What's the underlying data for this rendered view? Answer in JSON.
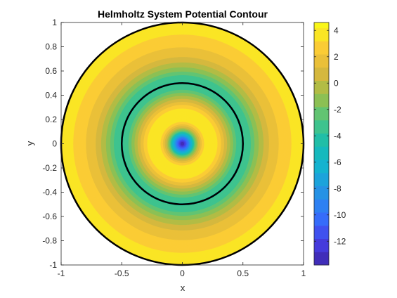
{
  "chart_data": {
    "type": "contour",
    "title": "Helmholtz System Potential Contour",
    "xlabel": "x",
    "ylabel": "y",
    "xlim": [
      -1,
      1
    ],
    "ylim": [
      -1,
      1
    ],
    "x_ticks": [
      "-1",
      "-0.5",
      "0",
      "0.5",
      "1"
    ],
    "y_ticks": [
      "-1",
      "-0.8",
      "-0.6",
      "-0.4",
      "-0.2",
      "0",
      "0.2",
      "0.4",
      "0.6",
      "0.8",
      "1"
    ],
    "domain": "unit disk",
    "colormap": "parula",
    "colorbar": {
      "range": [
        -13.8,
        4.6
      ],
      "ticks": [
        "4",
        "2",
        "0",
        "-2",
        "-4",
        "-6",
        "-8",
        "-10",
        "-12"
      ]
    },
    "radial_profile": [
      {
        "r": 0.0,
        "value": -13.8
      },
      {
        "r": 0.03,
        "value": -11.5
      },
      {
        "r": 0.06,
        "value": -8.0
      },
      {
        "r": 0.1,
        "value": -3.0
      },
      {
        "r": 0.14,
        "value": 1.0
      },
      {
        "r": 0.18,
        "value": 3.2
      },
      {
        "r": 0.23,
        "value": 4.0
      },
      {
        "r": 0.29,
        "value": 3.2
      },
      {
        "r": 0.34,
        "value": 1.5
      },
      {
        "r": 0.4,
        "value": -1.0
      },
      {
        "r": 0.45,
        "value": -3.0
      },
      {
        "r": 0.5,
        "value": -4.0
      },
      {
        "r": 0.56,
        "value": -3.0
      },
      {
        "r": 0.62,
        "value": -1.0
      },
      {
        "r": 0.68,
        "value": 0.5
      },
      {
        "r": 0.73,
        "value": 1.5
      },
      {
        "r": 0.78,
        "value": 2.0
      },
      {
        "r": 0.84,
        "value": 2.7
      },
      {
        "r": 0.9,
        "value": 3.2
      },
      {
        "r": 1.0,
        "value": 3.3
      }
    ],
    "boundary_circles": [
      0.5,
      1.0
    ]
  }
}
